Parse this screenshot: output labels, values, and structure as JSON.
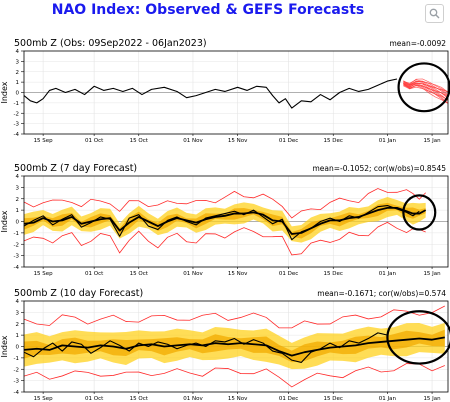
{
  "page": {
    "title": "NAO Index: Observed & GEFS Forecasts"
  },
  "toolbar": {
    "zoom_icon": "magnify-icon"
  },
  "colors": {
    "title": "#1a1aee",
    "observed": "#000000",
    "spread": "#ffd21e",
    "spread_core": "#f2a900",
    "envelope": "#ff2a2a",
    "members": "#ff3a3a",
    "circle": "#000000"
  },
  "chart_data": [
    {
      "type": "line",
      "title": "500mb Z (Obs: 09Sep2022 - 06Jan2023)",
      "stats": "mean=-0.0092",
      "ylabel": "Index",
      "ylim": [
        -4,
        4
      ],
      "yticks": [
        4,
        3,
        2,
        1,
        0,
        -1,
        -2,
        -3,
        -4
      ],
      "xticks": [
        "15 Sep",
        "01 Oct",
        "15 Oct",
        "01 Nov",
        "15 Nov",
        "01 Dec",
        "15 Dec",
        "01 Jan",
        "15 Jan"
      ],
      "xtick_days": [
        6,
        22,
        36,
        53,
        67,
        83,
        97,
        114,
        128
      ],
      "xlim_days": [
        0,
        133
      ],
      "series": [
        {
          "kind": "observed",
          "x": [
            0,
            2,
            4,
            6,
            8,
            10,
            13,
            16,
            19,
            22,
            25,
            28,
            31,
            34,
            37,
            40,
            44,
            48,
            51,
            54,
            57,
            60,
            63,
            67,
            70,
            73,
            76,
            78,
            80,
            82,
            84,
            87,
            90,
            93,
            96,
            99,
            102,
            105,
            108,
            111,
            114,
            117
          ],
          "y": [
            -0.3,
            -0.8,
            -1.0,
            -0.6,
            0.2,
            0.4,
            0.0,
            0.3,
            -0.2,
            0.6,
            0.2,
            0.4,
            0.1,
            0.4,
            -0.2,
            0.3,
            0.5,
            0.1,
            -0.5,
            -0.3,
            0.0,
            0.3,
            0.1,
            0.5,
            0.2,
            0.6,
            0.5,
            -0.3,
            -1.0,
            -0.6,
            -1.5,
            -0.8,
            -0.9,
            -0.2,
            -0.7,
            0.0,
            0.4,
            0.1,
            0.3,
            0.7,
            1.1,
            1.3
          ]
        }
      ],
      "forecast_members": {
        "x": [
          119,
          121,
          123,
          125,
          127,
          129,
          131,
          133
        ],
        "center": [
          0.9,
          0.6,
          0.9,
          0.8,
          0.5,
          0.2,
          -0.1,
          -0.5
        ],
        "spread": 0.5
      },
      "highlight_circle": {
        "day": 125.5,
        "value": 0.5,
        "rx_days": 8,
        "ry_value": 2.3
      }
    },
    {
      "type": "line",
      "title": "500mb Z (7 day Forecast)",
      "stats": "mean=-0.1052; cor(w/obs)=0.8545",
      "ylabel": "Index",
      "ylim": [
        -4,
        4
      ],
      "yticks": [
        4,
        3,
        2,
        1,
        0,
        -1,
        -2,
        -3,
        -4
      ],
      "xticks": [
        "15 Sep",
        "01 Oct",
        "15 Oct",
        "01 Nov",
        "15 Nov",
        "01 Dec",
        "15 Dec",
        "01 Jan",
        "15 Jan"
      ],
      "xtick_days": [
        6,
        22,
        36,
        53,
        67,
        83,
        97,
        114,
        128
      ],
      "xlim_days": [
        0,
        133
      ],
      "series": [
        {
          "kind": "observed",
          "x": [
            0,
            3,
            6,
            9,
            12,
            15,
            18,
            21,
            24,
            27,
            30,
            33,
            36,
            39,
            42,
            45,
            48,
            51,
            54,
            57,
            60,
            63,
            66,
            69,
            72,
            75,
            78,
            81,
            84,
            87,
            90,
            93,
            96,
            99,
            102,
            105,
            108,
            111,
            114,
            117,
            120,
            122,
            124
          ],
          "y": [
            -0.4,
            0.1,
            0.5,
            -0.3,
            0.2,
            0.6,
            -0.5,
            -0.1,
            0.4,
            0.2,
            -1.3,
            0.3,
            0.6,
            -0.4,
            -0.7,
            0.1,
            0.4,
            0.0,
            -0.3,
            0.3,
            0.5,
            0.7,
            0.9,
            0.6,
            1.0,
            0.4,
            -0.2,
            0.2,
            -1.6,
            -0.9,
            -0.6,
            0.0,
            0.3,
            0.0,
            0.5,
            0.3,
            0.8,
            1.3,
            1.4,
            1.1,
            0.8,
            0.5,
            0.9
          ]
        },
        {
          "kind": "ensemble-mean",
          "x": [
            0,
            3,
            6,
            9,
            12,
            15,
            18,
            21,
            24,
            27,
            30,
            33,
            36,
            39,
            42,
            45,
            48,
            51,
            54,
            57,
            60,
            63,
            66,
            69,
            72,
            75,
            78,
            81,
            84,
            87,
            90,
            93,
            96,
            99,
            102,
            105,
            108,
            111,
            114,
            117,
            120,
            122,
            124,
            126
          ],
          "y": [
            -0.2,
            -0.1,
            0.3,
            0.0,
            0.1,
            0.4,
            -0.2,
            0.0,
            0.2,
            0.3,
            -0.8,
            -0.1,
            0.4,
            0.0,
            -0.4,
            0.0,
            0.3,
            0.1,
            -0.1,
            0.2,
            0.4,
            0.5,
            0.7,
            0.7,
            0.8,
            0.6,
            0.1,
            0.0,
            -1.1,
            -1.0,
            -0.6,
            -0.2,
            0.1,
            0.1,
            0.3,
            0.4,
            0.7,
            1.0,
            1.2,
            1.2,
            0.9,
            0.7,
            0.7,
            1.0
          ]
        }
      ],
      "band_spread": {
        "core": 0.35,
        "outer": 0.8,
        "envelope": 1.6
      },
      "highlight_circle": {
        "day": 124,
        "value": 0.8,
        "rx_days": 5,
        "ry_value": 1.5
      }
    },
    {
      "type": "line",
      "title": "500mb Z (10 day Forecast)",
      "stats": "mean=-0.1671; cor(w/obs)=0.574",
      "ylabel": "Index",
      "ylim": [
        -4,
        4
      ],
      "yticks": [
        4,
        3,
        2,
        1,
        0,
        -1,
        -2,
        -3,
        -4
      ],
      "xticks": [
        "15 Sep",
        "01 Oct",
        "15 Oct",
        "01 Nov",
        "15 Nov",
        "01 Dec",
        "15 Dec",
        "01 Jan",
        "15 Jan"
      ],
      "xtick_days": [
        6,
        22,
        36,
        53,
        67,
        83,
        97,
        114,
        128
      ],
      "xlim_days": [
        0,
        133
      ],
      "series": [
        {
          "kind": "observed",
          "x": [
            0,
            3,
            6,
            9,
            12,
            15,
            18,
            21,
            24,
            27,
            30,
            33,
            36,
            39,
            42,
            45,
            48,
            51,
            54,
            57,
            60,
            63,
            66,
            69,
            72,
            75,
            78,
            81,
            84,
            87,
            90,
            93,
            96,
            99,
            102,
            105,
            108,
            111,
            114
          ],
          "y": [
            -0.5,
            -0.9,
            -0.2,
            0.3,
            -0.4,
            0.4,
            0.2,
            -0.6,
            -0.1,
            0.5,
            0.1,
            -0.4,
            0.3,
            0.0,
            0.4,
            0.2,
            -0.2,
            0.1,
            0.3,
            0.0,
            0.5,
            0.4,
            0.7,
            0.2,
            0.6,
            0.3,
            -0.4,
            -0.6,
            -1.2,
            -1.4,
            -0.5,
            -0.2,
            0.3,
            -0.1,
            0.5,
            0.3,
            0.7,
            1.2,
            1.0
          ]
        },
        {
          "kind": "ensemble-mean",
          "x": [
            0,
            4,
            8,
            12,
            16,
            20,
            24,
            28,
            32,
            36,
            40,
            44,
            48,
            52,
            56,
            60,
            64,
            68,
            72,
            76,
            80,
            84,
            88,
            92,
            96,
            100,
            104,
            108,
            112,
            116,
            120,
            124,
            128,
            132
          ],
          "y": [
            -0.3,
            -0.2,
            -0.3,
            0.1,
            0.0,
            -0.1,
            0.1,
            0.0,
            -0.2,
            0.1,
            0.2,
            0.0,
            0.1,
            0.2,
            0.1,
            0.3,
            0.2,
            0.3,
            0.2,
            0.1,
            -0.4,
            -0.8,
            -0.5,
            -0.3,
            -0.1,
            0.0,
            0.1,
            0.3,
            0.4,
            0.5,
            0.6,
            0.7,
            0.6,
            0.8
          ]
        }
      ],
      "band_spread": {
        "core": 0.6,
        "outer": 1.3,
        "envelope": 2.4
      },
      "highlight_circle": {
        "day": 124,
        "value": 0.8,
        "rx_days": 10,
        "ry_value": 2.3
      }
    }
  ]
}
